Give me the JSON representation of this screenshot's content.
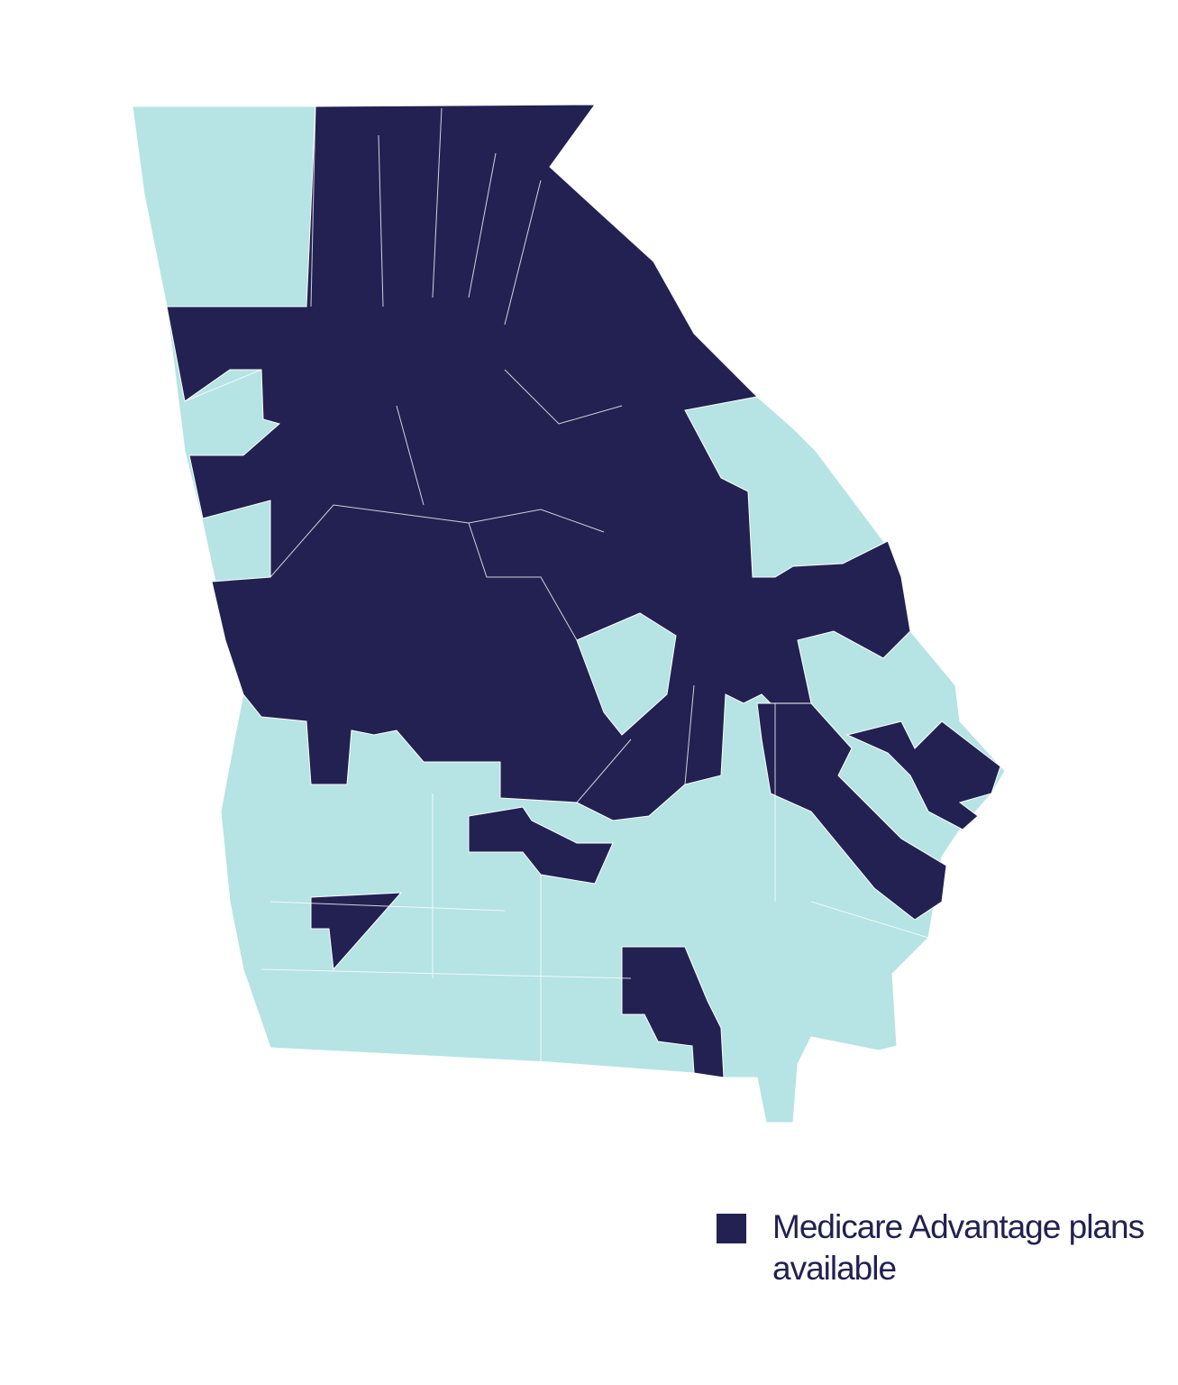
{
  "map": {
    "colors": {
      "available": "#222152",
      "not_available": "#b6e3e4",
      "border": "#ffffff"
    }
  },
  "legend": {
    "label": "Medicare Advantage plans available",
    "color": "#222152"
  }
}
